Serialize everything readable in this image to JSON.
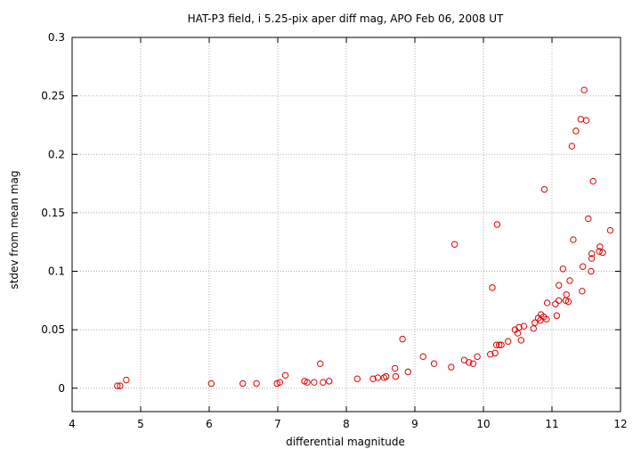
{
  "chart_data": {
    "type": "scatter",
    "title": "HAT-P3 field, i 5.25-pix aper diff mag, APO Feb 06, 2008 UT",
    "xlabel": "differential magnitude",
    "ylabel": "stdev from mean mag",
    "xlim": [
      4,
      12
    ],
    "ylim": [
      -0.02,
      0.3
    ],
    "xticks": [
      4,
      5,
      6,
      7,
      8,
      9,
      10,
      11,
      12
    ],
    "yticks": [
      0,
      0.05,
      0.1,
      0.15,
      0.2,
      0.25,
      0.3
    ],
    "xtick_labels": [
      "4",
      "5",
      "6",
      "7",
      "8",
      "9",
      "10",
      "11",
      "12"
    ],
    "ytick_labels": [
      "0",
      "0.05",
      "0.1",
      "0.15",
      "0.2",
      "0.25",
      "0.3"
    ],
    "grid": true,
    "marker": "open-circle",
    "marker_color": "#e00000",
    "series": [
      {
        "points": [
          [
            4.66,
            0.002
          ],
          [
            4.7,
            0.002
          ],
          [
            4.79,
            0.007
          ],
          [
            6.03,
            0.004
          ],
          [
            6.49,
            0.004
          ],
          [
            6.69,
            0.004
          ],
          [
            6.99,
            0.004
          ],
          [
            7.03,
            0.005
          ],
          [
            7.11,
            0.011
          ],
          [
            7.39,
            0.006
          ],
          [
            7.43,
            0.005
          ],
          [
            7.53,
            0.005
          ],
          [
            7.62,
            0.021
          ],
          [
            7.66,
            0.005
          ],
          [
            7.75,
            0.006
          ],
          [
            8.16,
            0.008
          ],
          [
            8.39,
            0.008
          ],
          [
            8.46,
            0.009
          ],
          [
            8.55,
            0.009
          ],
          [
            8.58,
            0.01
          ],
          [
            8.71,
            0.017
          ],
          [
            8.72,
            0.01
          ],
          [
            8.82,
            0.042
          ],
          [
            8.9,
            0.014
          ],
          [
            9.12,
            0.027
          ],
          [
            9.28,
            0.021
          ],
          [
            9.53,
            0.018
          ],
          [
            9.58,
            0.123
          ],
          [
            9.72,
            0.024
          ],
          [
            9.79,
            0.022
          ],
          [
            9.85,
            0.021
          ],
          [
            9.91,
            0.027
          ],
          [
            10.1,
            0.029
          ],
          [
            10.13,
            0.086
          ],
          [
            10.17,
            0.03
          ],
          [
            10.19,
            0.037
          ],
          [
            10.2,
            0.14
          ],
          [
            10.23,
            0.037
          ],
          [
            10.26,
            0.037
          ],
          [
            10.36,
            0.04
          ],
          [
            10.46,
            0.05
          ],
          [
            10.5,
            0.047
          ],
          [
            10.52,
            0.052
          ],
          [
            10.55,
            0.041
          ],
          [
            10.59,
            0.053
          ],
          [
            10.73,
            0.051
          ],
          [
            10.75,
            0.056
          ],
          [
            10.8,
            0.06
          ],
          [
            10.83,
            0.058
          ],
          [
            10.84,
            0.063
          ],
          [
            10.88,
            0.061
          ],
          [
            10.89,
            0.17
          ],
          [
            10.92,
            0.059
          ],
          [
            10.93,
            0.073
          ],
          [
            11.05,
            0.072
          ],
          [
            11.07,
            0.062
          ],
          [
            11.1,
            0.088
          ],
          [
            11.1,
            0.075
          ],
          [
            11.16,
            0.102
          ],
          [
            11.2,
            0.075
          ],
          [
            11.21,
            0.08
          ],
          [
            11.24,
            0.074
          ],
          [
            11.26,
            0.092
          ],
          [
            11.29,
            0.207
          ],
          [
            11.31,
            0.127
          ],
          [
            11.35,
            0.22
          ],
          [
            11.42,
            0.23
          ],
          [
            11.44,
            0.083
          ],
          [
            11.45,
            0.104
          ],
          [
            11.47,
            0.255
          ],
          [
            11.5,
            0.229
          ],
          [
            11.53,
            0.145
          ],
          [
            11.57,
            0.1
          ],
          [
            11.58,
            0.111
          ],
          [
            11.58,
            0.115
          ],
          [
            11.6,
            0.177
          ],
          [
            11.69,
            0.117
          ],
          [
            11.7,
            0.121
          ],
          [
            11.74,
            0.116
          ],
          [
            11.85,
            0.135
          ]
        ]
      }
    ]
  }
}
